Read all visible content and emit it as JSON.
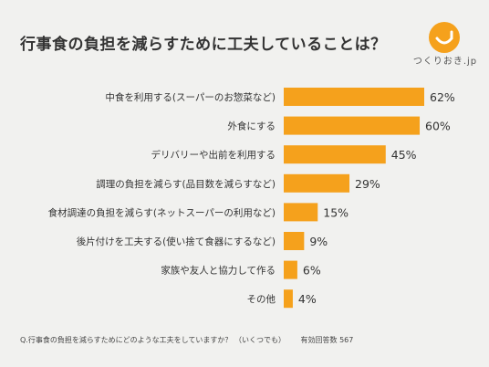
{
  "header": {
    "title": "行事食の負担を減らすために工夫していることは？",
    "logo_text": "つくりおき.jp"
  },
  "footer": {
    "question": "Q.行事食の負担を減らすためにどのような工夫をしていますか？ （いくつでも）",
    "sample": "有効回答数 567"
  },
  "colors": {
    "bar": "#f5a11c",
    "background": "#f1f1ef",
    "text": "#333333"
  },
  "chart_data": {
    "type": "bar",
    "orientation": "horizontal",
    "title": "行事食の負担を減らすために工夫していることは？",
    "xlabel": "",
    "ylabel": "",
    "unit": "%",
    "grid": false,
    "categories": [
      "中食を利用する(スーパーのお惣菜など)",
      "外食にする",
      "デリバリーや出前を利用する",
      "調理の負担を減らす(品目数を減らすなど)",
      "食材調達の負担を減らす(ネットスーパーの利用など)",
      "後片付けを工夫する(使い捨て食器にするなど)",
      "家族や友人と協力して作る",
      "その他"
    ],
    "values": [
      62,
      60,
      45,
      29,
      15,
      9,
      6,
      4
    ],
    "value_labels": [
      "62%",
      "60%",
      "45%",
      "29%",
      "15%",
      "9%",
      "6%",
      "4%"
    ],
    "xlim": [
      0,
      62
    ]
  }
}
